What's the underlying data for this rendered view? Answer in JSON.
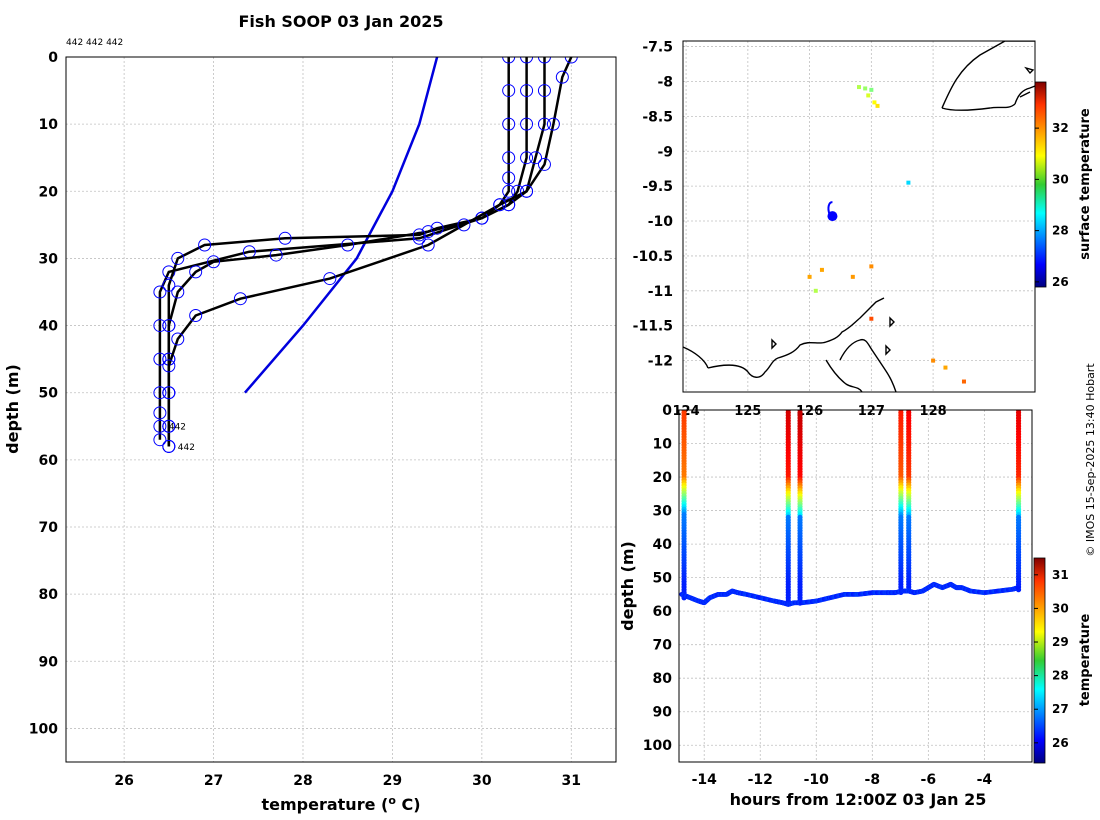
{
  "colors": {
    "profile_line": "#000000",
    "profile_marker": "#0000ff",
    "climatology_line": "#0000dd",
    "grid": "#c0c0c0"
  },
  "chart_data": [
    {
      "type": "line",
      "title": "Fish SOOP 03 Jan 2025",
      "xlabel": "temperature (",
      "xlabel_sup": "o",
      "xlabel_end": " C)",
      "ylabel": "depth (m)",
      "xlim": [
        25.35,
        31.5
      ],
      "ylim": [
        105,
        0
      ],
      "xticks": [
        "26",
        "27",
        "28",
        "29",
        "30",
        "31"
      ],
      "yticks": [
        "0",
        "10",
        "20",
        "30",
        "40",
        "50",
        "60",
        "70",
        "80",
        "90",
        "100"
      ],
      "top_annotation": "442 442 442",
      "end_labels": [
        {
          "text": "442",
          "t": 26.5,
          "d": 55.5
        },
        {
          "text": "442",
          "t": 26.6,
          "d": 58.5
        }
      ],
      "series": [
        {
          "name": "climatology",
          "t": [
            27.35,
            28.0,
            28.6,
            29.0,
            29.3,
            29.4,
            29.5
          ],
          "d": [
            50,
            40,
            30,
            20,
            10,
            5,
            0
          ]
        },
        {
          "name": "profile-1",
          "t": [
            30.3,
            30.3,
            30.3,
            30.3,
            30.3,
            30.3,
            30.2,
            30.0,
            29.3,
            27.4,
            26.5,
            26.4,
            26.4,
            26.4,
            26.4,
            26.4,
            26.4,
            26.4
          ],
          "d": [
            0,
            5,
            10,
            15,
            18,
            20,
            22,
            24,
            27,
            29,
            32,
            35,
            40,
            45,
            50,
            53,
            55,
            57
          ]
        },
        {
          "name": "profile-2",
          "t": [
            30.5,
            30.5,
            30.5,
            30.5,
            30.4,
            30.3,
            30.0,
            29.4,
            28.5,
            27.7,
            27.0,
            26.8,
            26.6,
            26.5,
            26.5,
            26.5,
            26.5,
            26.5
          ],
          "d": [
            0,
            5,
            10,
            15,
            20,
            22,
            24,
            26,
            28,
            29.5,
            30.5,
            32,
            35,
            40,
            45,
            50,
            55,
            58
          ]
        },
        {
          "name": "profile-3",
          "t": [
            30.7,
            30.7,
            30.7,
            30.6,
            30.5,
            30.3,
            30.0,
            29.5,
            29.3,
            27.8,
            26.9,
            26.6,
            26.5,
            26.5,
            26.5,
            26.5,
            26.5,
            26.5
          ],
          "d": [
            0,
            5,
            10,
            15,
            20,
            22,
            24,
            25.5,
            26.5,
            27,
            28,
            30,
            34,
            40,
            45,
            50,
            55,
            58
          ]
        },
        {
          "name": "profile-4",
          "t": [
            31.0,
            30.9,
            30.8,
            30.7,
            30.5,
            30.2,
            29.8,
            29.4,
            28.3,
            27.3,
            26.8,
            26.6,
            26.5,
            26.5,
            26.5,
            26.5
          ],
          "d": [
            0,
            3,
            10,
            16,
            20,
            22,
            25,
            28,
            33,
            36,
            38.5,
            42,
            46,
            50,
            55,
            58
          ]
        }
      ]
    },
    {
      "type": "map",
      "xlim": [
        123.95,
        129.65
      ],
      "ylim": [
        -12.45,
        -7.42
      ],
      "xticks": [
        "124",
        "125",
        "126",
        "127",
        "128"
      ],
      "yticks": [
        "-7.5",
        "-8",
        "-8.5",
        "-9",
        "-9.5",
        "-10",
        "-10.5",
        "-11",
        "-11.5",
        "-12"
      ],
      "colorbar": {
        "label": "surface temperature",
        "range": [
          25.8,
          33.8
        ],
        "ticks": [
          "26",
          "28",
          "30",
          "32"
        ]
      },
      "track_position": {
        "lon": 126.37,
        "lat": -9.93
      },
      "sst_points": [
        {
          "lon": 126.8,
          "lat": -8.08,
          "v": 30.2
        },
        {
          "lon": 126.9,
          "lat": -8.1,
          "v": 30.0
        },
        {
          "lon": 127.0,
          "lat": -8.12,
          "v": 29.8
        },
        {
          "lon": 127.05,
          "lat": -8.3,
          "v": 30.8
        },
        {
          "lon": 127.1,
          "lat": -8.35,
          "v": 31.0
        },
        {
          "lon": 126.95,
          "lat": -8.2,
          "v": 30.5
        },
        {
          "lon": 127.6,
          "lat": -9.45,
          "v": 28.5
        },
        {
          "lon": 126.0,
          "lat": -10.8,
          "v": 31.5
        },
        {
          "lon": 126.2,
          "lat": -10.7,
          "v": 31.5
        },
        {
          "lon": 126.7,
          "lat": -10.8,
          "v": 31.6
        },
        {
          "lon": 127.0,
          "lat": -10.65,
          "v": 31.7
        },
        {
          "lon": 126.1,
          "lat": -11.0,
          "v": 30.2
        },
        {
          "lon": 127.0,
          "lat": -11.4,
          "v": 32.2
        },
        {
          "lon": 128.0,
          "lat": -12.0,
          "v": 31.7
        },
        {
          "lon": 128.2,
          "lat": -12.1,
          "v": 31.5
        },
        {
          "lon": 128.5,
          "lat": -12.3,
          "v": 32.0
        }
      ]
    },
    {
      "type": "scatter",
      "xlabel": "hours from 12:00Z 03 Jan 25",
      "ylabel": "depth (m)",
      "xlim": [
        -14.9,
        -2.3
      ],
      "ylim": [
        105,
        0
      ],
      "xticks": [
        "-14",
        "-12",
        "-10",
        "-8",
        "-6",
        "-4"
      ],
      "yticks": [
        "0",
        "10",
        "20",
        "30",
        "40",
        "50",
        "60",
        "70",
        "80",
        "90",
        "100"
      ],
      "colorbar": {
        "label": "temperature",
        "range": [
          25.4,
          31.5
        ],
        "ticks": [
          "26",
          "27",
          "28",
          "29",
          "30",
          "31"
        ]
      },
      "bottom_track": {
        "x": [
          -14.8,
          -14.5,
          -14.2,
          -14.0,
          -13.8,
          -13.5,
          -13.2,
          -13.0,
          -12.8,
          -12.5,
          -12.0,
          -11.5,
          -11.2,
          -11.0,
          -10.8,
          -10.5,
          -10.0,
          -9.5,
          -9.0,
          -8.5,
          -8.0,
          -7.5,
          -7.2,
          -6.9,
          -6.7,
          -6.5,
          -6.2,
          -6.0,
          -5.8,
          -5.5,
          -5.2,
          -5.0,
          -4.8,
          -4.5,
          -4.0,
          -3.5,
          -3.0,
          -2.8
        ],
        "d": [
          55,
          56,
          57,
          57.5,
          56,
          55,
          55,
          54,
          54.5,
          55,
          56,
          57,
          57.5,
          58,
          57.5,
          57.5,
          57,
          56,
          55,
          55,
          54.5,
          54.5,
          54.5,
          54,
          54,
          54.5,
          54,
          53,
          52,
          53,
          52,
          53,
          53,
          54,
          54.5,
          54,
          53.5,
          53
        ]
      },
      "casts": [
        {
          "x": -14.72,
          "tsurf": 30.4,
          "bottom": 56
        },
        {
          "x": -11.0,
          "tsurf": 31.0,
          "bottom": 58
        },
        {
          "x": -10.58,
          "tsurf": 31.1,
          "bottom": 58
        },
        {
          "x": -6.98,
          "tsurf": 30.6,
          "bottom": 55
        },
        {
          "x": -6.7,
          "tsurf": 30.8,
          "bottom": 54
        },
        {
          "x": -2.78,
          "tsurf": 30.9,
          "bottom": 54
        }
      ],
      "credit": "© IMOS 15-Sep-2025 13:40 Hobart"
    }
  ]
}
